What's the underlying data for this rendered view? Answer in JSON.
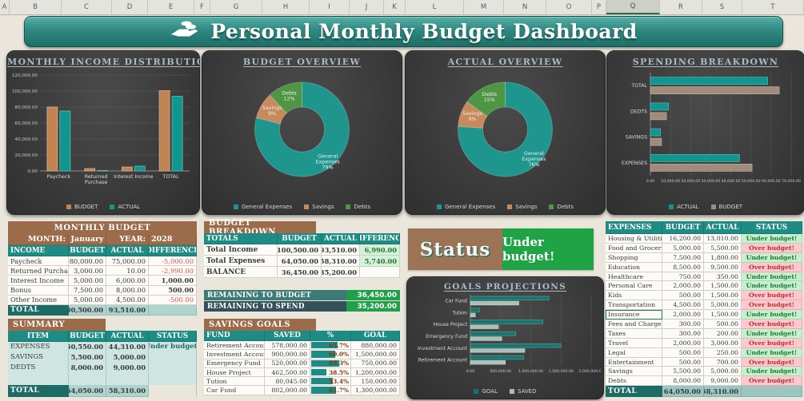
{
  "spreadsheet": {
    "column_headers": [
      "A",
      "B",
      "C",
      "D",
      "E",
      "F",
      "G",
      "H",
      "I",
      "J",
      "K",
      "L",
      "M",
      "N",
      "O",
      "P",
      "Q",
      "R",
      "S",
      "T"
    ],
    "selected_column": "Q"
  },
  "header": {
    "title": "Personal Monthly Budget Dashboard",
    "icon": "hand-money-icon"
  },
  "colors": {
    "accent_teal": "#1E8C85",
    "dark_teal": "#1D6B66",
    "brown": "#9C6B4A",
    "status_green_bg": "#C6EFCE",
    "status_green_text": "#1E7B34",
    "status_red_bg": "#FFC7CE",
    "status_red_text": "#B5332F",
    "remaining_green": "#21A04B",
    "negative_red": "#E2554A",
    "excel_green": "#217346"
  },
  "chart_data": [
    {
      "type": "bar",
      "title": "MONTHLY INCOME DISTRIBUTION",
      "categories": [
        "Paycheck",
        "Returned Purchase",
        "Interest Income",
        "TOTAL"
      ],
      "series": [
        {
          "name": "BUDGET",
          "color": "#C08452",
          "values": [
            80000,
            3000,
            5000,
            100500
          ]
        },
        {
          "name": "ACTUAL",
          "color": "#0F968E",
          "values": [
            75000,
            10,
            6000,
            93510
          ]
        }
      ],
      "ylim": [
        0,
        120000
      ],
      "grid": true,
      "legend_position": "bottom",
      "yticks": [
        "0.00",
        "20,000.00",
        "40,000.00",
        "60,000.00",
        "80,000.00",
        "100,000.00",
        "120,000.00"
      ]
    },
    {
      "type": "pie",
      "title": "BUDGET OVERVIEW",
      "donut": true,
      "legend_position": "bottom",
      "slices": [
        {
          "label": "General Expenses",
          "pct": 79,
          "color": "#1E968E"
        },
        {
          "label": "Savings",
          "pct": 9,
          "color": "#C98A5B"
        },
        {
          "label": "Debts",
          "pct": 12,
          "color": "#4F9644"
        }
      ]
    },
    {
      "type": "pie",
      "title": "ACTUAL OVERVIEW",
      "donut": true,
      "legend_position": "bottom",
      "slices": [
        {
          "label": "General Expenses",
          "pct": 76,
          "color": "#1E968E"
        },
        {
          "label": "Savings",
          "pct": 9,
          "color": "#C98A5B"
        },
        {
          "label": "Debts",
          "pct": 15,
          "color": "#4F9644"
        }
      ]
    },
    {
      "type": "bar",
      "orientation": "horizontal",
      "title": "SPENDING BREAKDOWN",
      "categories": [
        "TOTAL",
        "DEDTS",
        "SAVINGS",
        "EXPENSES"
      ],
      "series": [
        {
          "name": "ACTUAL",
          "color": "#0F968E",
          "values": [
            58310,
            9000,
            5000,
            44310
          ]
        },
        {
          "name": "BUDGET",
          "color": "#A08C7D",
          "values": [
            64050,
            8000,
            5500,
            50550
          ]
        }
      ],
      "xlim": [
        0,
        70000
      ],
      "grid": true,
      "legend_position": "bottom",
      "xticks": [
        "0.00",
        "10,000.00",
        "20,000.00",
        "30,000.00",
        "40,000.00",
        "50,000.00",
        "60,000.00",
        "70,000.00"
      ]
    },
    {
      "type": "bar",
      "orientation": "horizontal",
      "title": "GOALS PROJECTIONS",
      "categories": [
        "Car Fund",
        "Tution",
        "House Project",
        "Emergency Fund",
        "Investment Account",
        "Retirement Account"
      ],
      "series": [
        {
          "name": "GOAL",
          "color": "#15746D",
          "values": [
            1300000,
            150000,
            1200000,
            750000,
            1500000,
            880000
          ]
        },
        {
          "name": "SAVED",
          "color": "#A7C2B8",
          "values": [
            802000,
            80045,
            462500,
            520000,
            900000,
            578000
          ]
        }
      ],
      "xlim": [
        0,
        2000000
      ],
      "grid": true,
      "legend_position": "bottom",
      "xticks": [
        "0.00",
        "500,000.00",
        "1,000,000.00",
        "1,500,000.00",
        "2,000,000.00"
      ]
    }
  ],
  "monthly_budget": {
    "title": "MONTHLY BUDGET",
    "month_label": "MONTH:",
    "month": "January",
    "year_label": "YEAR:",
    "year": "2028",
    "columns": [
      "INCOME",
      "BUDGET",
      "ACTUAL",
      "DIFFERENCE"
    ],
    "rows": [
      {
        "name": "Paycheck",
        "budget": "80,000.00",
        "actual": "75,000.00",
        "difference": "-5,000.00"
      },
      {
        "name": "Returned Purchase",
        "budget": "3,000.00",
        "actual": "10.00",
        "difference": "-2,990.00"
      },
      {
        "name": "Interest Income",
        "budget": "5,000.00",
        "actual": "6,000.00",
        "difference": "1,000.00"
      },
      {
        "name": "Bonus",
        "budget": "7,500.00",
        "actual": "8,000.00",
        "difference": "500.00"
      },
      {
        "name": "Other Income",
        "budget": "5,000.00",
        "actual": "4,500.00",
        "difference": "-500.00"
      }
    ],
    "total": {
      "name": "TOTAL",
      "budget": "100,500.00",
      "actual": "93,510.00",
      "difference": ""
    }
  },
  "summary": {
    "title": "SUMMARY",
    "columns": [
      "ITEM",
      "BUDGET",
      "ACTUAL",
      "STATUS"
    ],
    "rows": [
      {
        "name": "EXPENSES",
        "budget": "50,550.00",
        "actual": "44,310.00",
        "status": "Under budget!"
      },
      {
        "name": "SAVINGS",
        "budget": "5,500.00",
        "actual": "5,000.00",
        "status": ""
      },
      {
        "name": "DEDTS",
        "budget": "8,000.00",
        "actual": "9,000.00",
        "status": ""
      }
    ],
    "total": {
      "name": "TOTAL",
      "budget": "64,050.00",
      "actual": "58,310.00"
    }
  },
  "budget_breakdown": {
    "title": "BUDGET BREAKDOWN",
    "columns": [
      "TOTALS",
      "BUDGET",
      "ACTUAL",
      "DIFFERENCE"
    ],
    "rows": [
      {
        "name": "Total Income",
        "budget": "100,500.00",
        "actual": "93,510.00",
        "difference": "6,990.00"
      },
      {
        "name": "Total Expenses",
        "budget": "64,050.00",
        "actual": "58,310.00",
        "difference": "5,740.00"
      },
      {
        "name": "BALANCE",
        "budget": "36,450.00",
        "actual": "35,200.00",
        "difference": ""
      }
    ]
  },
  "remaining": [
    {
      "label": "REMAINING TO BUDGET",
      "value": "36,450.00"
    },
    {
      "label": "REMAINING TO SPEND",
      "value": "35,200.00"
    }
  ],
  "status_box": {
    "label": "Status",
    "value": "Under budget!"
  },
  "savings_goals": {
    "title": "SAVINGS GOALS",
    "columns": [
      "FUND",
      "SAVED",
      "%",
      "GOAL"
    ],
    "rows": [
      {
        "fund": "Retirement Account",
        "saved": "578,000.00",
        "pct": "65.7%",
        "pct_value": 65.7,
        "goal": "880,000.00"
      },
      {
        "fund": "Investment Account",
        "saved": "900,000.00",
        "pct": "60.0%",
        "pct_value": 60.0,
        "goal": "1,500,000.00"
      },
      {
        "fund": "Emergency Fund",
        "saved": "520,000.00",
        "pct": "69.3%",
        "pct_value": 69.3,
        "goal": "750,000.00"
      },
      {
        "fund": "House Project",
        "saved": "462,500.00",
        "pct": "38.5%",
        "pct_value": 38.5,
        "goal": "1,200,000.00"
      },
      {
        "fund": "Tution",
        "saved": "80,045.00",
        "pct": "53.4%",
        "pct_value": 53.4,
        "goal": "150,000.00"
      },
      {
        "fund": "Car Fund",
        "saved": "802,000.00",
        "pct": "61.7%",
        "pct_value": 61.7,
        "goal": "1,300,000.00"
      }
    ]
  },
  "expenses": {
    "columns": [
      "EXPENSES",
      "BUDGET",
      "ACTUAL",
      "STATUS"
    ],
    "rows": [
      {
        "name": "Housing & Utilities",
        "budget": "16,200.00",
        "actual": "13,010.00",
        "status": "Under budget!"
      },
      {
        "name": "Food and Groceries",
        "budget": "5,000.00",
        "actual": "5,500.00",
        "status": "Over budget!"
      },
      {
        "name": "Shopping",
        "budget": "7,500.00",
        "actual": "1,800.00",
        "status": "Under budget!"
      },
      {
        "name": "Education",
        "budget": "8,500.00",
        "actual": "9,500.00",
        "status": "Over budget!"
      },
      {
        "name": "Healthcare",
        "budget": "750.00",
        "actual": "350.00",
        "status": "Under budget!"
      },
      {
        "name": "Personal Care",
        "budget": "2,000.00",
        "actual": "1,500.00",
        "status": "Under budget!"
      },
      {
        "name": "Kids",
        "budget": "500.00",
        "actual": "1,500.00",
        "status": "Over budget!"
      },
      {
        "name": "Transportation",
        "budget": "4,500.00",
        "actual": "5,000.00",
        "status": "Over budget!"
      },
      {
        "name": "Insurance",
        "budget": "2,000.00",
        "actual": "1,500.00",
        "status": "Under budget!",
        "selected": true
      },
      {
        "name": "Fees and Charges",
        "budget": "300.00",
        "actual": "500.00",
        "status": "Over budget!"
      },
      {
        "name": "Taxes",
        "budget": "300.00",
        "actual": "200.00",
        "status": "Under budget!"
      },
      {
        "name": "Travel",
        "budget": "2,000.00",
        "actual": "3,000.00",
        "status": "Over budget!"
      },
      {
        "name": "Legal",
        "budget": "500.00",
        "actual": "250.00",
        "status": "Under budget!"
      },
      {
        "name": "Entertainment",
        "budget": "500.00",
        "actual": "700.00",
        "status": "Over budget!"
      },
      {
        "name": "Savings",
        "budget": "5,500.00",
        "actual": "5,000.00",
        "status": "Under budget!"
      },
      {
        "name": "Debts",
        "budget": "8,000.00",
        "actual": "9,000.00",
        "status": "Over budget!"
      }
    ],
    "total": {
      "name": "TOTAL",
      "budget": "64,050.00",
      "actual": "58,310.00"
    }
  }
}
